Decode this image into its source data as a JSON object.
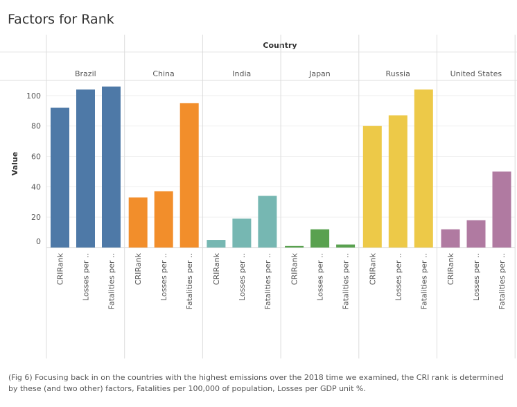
{
  "title": "Factors for Rank",
  "caption": "(Fig 6) Focusing back in on the countries with the highest emissions over the 2018 time we examined, the CRI rank is determined by these (and two other) factors, Fatalities per 100,000 of population, Losses per GDP unit %.",
  "chart_data": {
    "type": "bar",
    "column_header": "Country",
    "ylabel": "Value",
    "ylim": [
      0,
      110
    ],
    "yticks": [
      0,
      20,
      40,
      60,
      80,
      100
    ],
    "grid": true,
    "tick_labels": [
      "CRIRank",
      "Losses per ..",
      "Fatalities per .."
    ],
    "groups": [
      {
        "name": "Brazil",
        "color": "#4e79a7",
        "values": [
          92,
          104,
          106
        ]
      },
      {
        "name": "China",
        "color": "#f28e2b",
        "values": [
          33,
          37,
          95
        ]
      },
      {
        "name": "India",
        "color": "#76b7b2",
        "values": [
          5,
          19,
          34
        ]
      },
      {
        "name": "Japan",
        "color": "#59a14f",
        "values": [
          1,
          12,
          2
        ]
      },
      {
        "name": "Russia",
        "color": "#edc948",
        "values": [
          80,
          87,
          104
        ]
      },
      {
        "name": "United States",
        "color": "#b07aa1",
        "values": [
          12,
          18,
          50
        ]
      }
    ]
  }
}
